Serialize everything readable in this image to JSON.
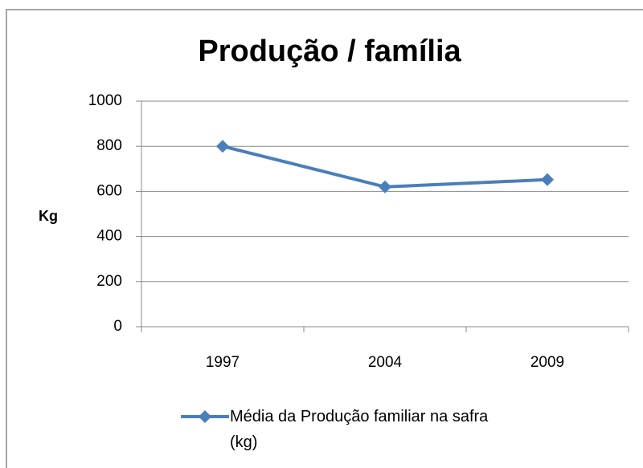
{
  "chart_data": {
    "type": "line",
    "title": "Produção / família",
    "y_label": "Kg",
    "categories": [
      "1997",
      "2004",
      "2009"
    ],
    "series": [
      {
        "name": "Média da Produção familiar na safra (kg)",
        "color": "#4a7ebb",
        "values": [
          800,
          620,
          652
        ]
      }
    ],
    "ylim": [
      0,
      1000
    ],
    "yticks": [
      0,
      200,
      400,
      600,
      800,
      1000
    ],
    "grid": true,
    "legend": "bottom"
  }
}
